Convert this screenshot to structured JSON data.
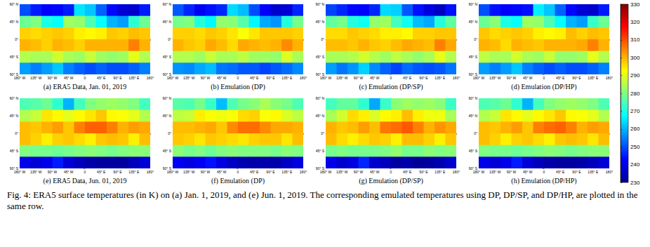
{
  "chart_data": {
    "type": "heatmap",
    "caption": "Fig. 4: ERA5 surface temperatures (in K) on (a) Jan. 1, 2019, and (e) Jun. 1, 2019. The corresponding emulated temperatures using DP, DP/SP, and DP/HP, are plotted in the same row.",
    "xlim": [
      -180,
      180
    ],
    "ylim": [
      -90,
      90
    ],
    "xticks": [
      {
        "value": -180,
        "label": "180° W"
      },
      {
        "value": -135,
        "label": "135° W"
      },
      {
        "value": -90,
        "label": "90° W"
      },
      {
        "value": -45,
        "label": "45° W"
      },
      0,
      {
        "value": 45,
        "label": "45° E"
      },
      {
        "value": 90,
        "label": "90° E"
      },
      {
        "value": 135,
        "label": "135° E"
      },
      {
        "value": 180,
        "label": "180°"
      }
    ],
    "yticks": [
      {
        "value": -90,
        "label": "90° S"
      },
      {
        "value": -45,
        "label": "45° S"
      },
      {
        "value": 0,
        "label": "0°"
      },
      {
        "value": 45,
        "label": "45° N"
      },
      {
        "value": 90,
        "label": "90° N"
      }
    ],
    "grid": false,
    "lon_edges": [
      -180,
      -150,
      -120,
      -90,
      -60,
      -30,
      0,
      30,
      60,
      90,
      120,
      150,
      180
    ],
    "lat_edges": [
      90,
      60,
      30,
      0,
      -30,
      -60,
      -90
    ],
    "colorbar": {
      "range": [
        230,
        330
      ],
      "ticks": [
        230,
        240,
        250,
        260,
        270,
        280,
        290,
        300,
        310,
        320,
        330
      ]
    },
    "panels": [
      {
        "caption": "(a) ERA5 Data, Jan. 01, 2019",
        "cells": [
          [
            250,
            245,
            242,
            243,
            245,
            265,
            262,
            252,
            243,
            238,
            237,
            245
          ],
          [
            278,
            280,
            270,
            268,
            283,
            282,
            275,
            268,
            260,
            258,
            272,
            278
          ],
          [
            297,
            296,
            297,
            298,
            297,
            294,
            293,
            294,
            298,
            297,
            299,
            298
          ],
          [
            300,
            299,
            297,
            300,
            299,
            297,
            300,
            300,
            300,
            300,
            305,
            300
          ],
          [
            285,
            284,
            284,
            288,
            284,
            283,
            287,
            283,
            282,
            283,
            290,
            285
          ],
          [
            258,
            255,
            258,
            262,
            255,
            252,
            250,
            252,
            250,
            250,
            252,
            255
          ]
        ]
      },
      {
        "caption": "(b) Emulation (DP)",
        "cells": [
          [
            251,
            246,
            241,
            244,
            246,
            264,
            261,
            250,
            242,
            237,
            238,
            246
          ],
          [
            279,
            280,
            271,
            267,
            282,
            281,
            276,
            267,
            259,
            257,
            271,
            279
          ],
          [
            297,
            297,
            296,
            298,
            297,
            295,
            292,
            295,
            298,
            298,
            298,
            297
          ],
          [
            300,
            298,
            297,
            301,
            299,
            296,
            301,
            300,
            299,
            300,
            304,
            300
          ],
          [
            285,
            285,
            283,
            287,
            284,
            284,
            286,
            283,
            283,
            282,
            289,
            284
          ],
          [
            257,
            256,
            259,
            261,
            254,
            253,
            251,
            251,
            249,
            251,
            253,
            256
          ]
        ]
      },
      {
        "caption": "(c) Emulation (DP/SP)",
        "cells": [
          [
            249,
            246,
            243,
            242,
            246,
            264,
            263,
            251,
            244,
            239,
            236,
            244
          ],
          [
            277,
            279,
            271,
            269,
            282,
            283,
            274,
            269,
            261,
            259,
            271,
            277
          ],
          [
            296,
            296,
            298,
            297,
            296,
            294,
            294,
            293,
            297,
            297,
            298,
            298
          ],
          [
            299,
            299,
            298,
            300,
            298,
            297,
            299,
            301,
            300,
            299,
            305,
            301
          ],
          [
            284,
            284,
            285,
            288,
            285,
            283,
            286,
            284,
            282,
            284,
            290,
            285
          ],
          [
            258,
            254,
            257,
            263,
            256,
            252,
            249,
            253,
            251,
            250,
            251,
            254
          ]
        ]
      },
      {
        "caption": "(d) Emulation (DP/HP)",
        "cells": [
          [
            250,
            244,
            242,
            243,
            244,
            266,
            262,
            252,
            243,
            238,
            237,
            245
          ],
          [
            278,
            281,
            270,
            268,
            283,
            282,
            275,
            268,
            260,
            258,
            273,
            278
          ],
          [
            298,
            296,
            297,
            298,
            297,
            294,
            293,
            294,
            299,
            297,
            299,
            298
          ],
          [
            300,
            299,
            296,
            300,
            299,
            298,
            300,
            300,
            300,
            301,
            305,
            300
          ],
          [
            286,
            284,
            284,
            288,
            284,
            283,
            287,
            282,
            282,
            283,
            290,
            285
          ],
          [
            258,
            255,
            258,
            262,
            255,
            252,
            250,
            252,
            250,
            250,
            252,
            255
          ]
        ]
      },
      {
        "caption": "(e) ERA5 Data, Jun. 01, 2019",
        "cells": [
          [
            275,
            276,
            278,
            272,
            260,
            274,
            280,
            282,
            283,
            282,
            280,
            274
          ],
          [
            285,
            287,
            295,
            293,
            290,
            293,
            295,
            298,
            293,
            292,
            290,
            285
          ],
          [
            299,
            298,
            300,
            302,
            298,
            305,
            308,
            308,
            305,
            300,
            302,
            301
          ],
          [
            299,
            297,
            294,
            297,
            298,
            296,
            294,
            298,
            299,
            298,
            294,
            299
          ],
          [
            280,
            279,
            279,
            278,
            279,
            280,
            281,
            280,
            279,
            280,
            281,
            281
          ],
          [
            240,
            238,
            240,
            245,
            238,
            235,
            233,
            232,
            232,
            232,
            235,
            238
          ]
        ]
      },
      {
        "caption": "(f) Emulation (DP)",
        "cells": [
          [
            276,
            275,
            279,
            273,
            261,
            275,
            279,
            281,
            284,
            281,
            279,
            275
          ],
          [
            286,
            287,
            294,
            292,
            291,
            292,
            296,
            297,
            292,
            293,
            289,
            286
          ],
          [
            299,
            299,
            300,
            301,
            298,
            304,
            307,
            307,
            304,
            301,
            301,
            300
          ],
          [
            298,
            297,
            295,
            298,
            297,
            296,
            295,
            297,
            298,
            298,
            295,
            299
          ],
          [
            281,
            279,
            280,
            278,
            280,
            281,
            280,
            280,
            280,
            279,
            281,
            280
          ],
          [
            241,
            239,
            241,
            244,
            239,
            236,
            234,
            233,
            233,
            233,
            236,
            239
          ]
        ]
      },
      {
        "caption": "(g) Emulation (DP/SP)",
        "cells": [
          [
            274,
            277,
            277,
            272,
            259,
            273,
            281,
            283,
            282,
            283,
            281,
            273
          ],
          [
            284,
            288,
            296,
            294,
            289,
            293,
            294,
            299,
            294,
            291,
            291,
            284
          ],
          [
            300,
            298,
            299,
            302,
            299,
            306,
            307,
            309,
            305,
            300,
            303,
            301
          ],
          [
            299,
            296,
            294,
            296,
            298,
            297,
            294,
            299,
            299,
            297,
            294,
            298
          ],
          [
            279,
            280,
            279,
            279,
            279,
            280,
            282,
            279,
            279,
            281,
            280,
            281
          ],
          [
            240,
            237,
            239,
            246,
            237,
            235,
            232,
            233,
            231,
            232,
            234,
            237
          ]
        ]
      },
      {
        "caption": "(h) Emulation (DP/HP)",
        "cells": [
          [
            275,
            276,
            278,
            272,
            260,
            274,
            280,
            282,
            283,
            282,
            280,
            275
          ],
          [
            285,
            287,
            295,
            293,
            290,
            293,
            295,
            298,
            293,
            292,
            290,
            285
          ],
          [
            299,
            298,
            300,
            302,
            298,
            305,
            307,
            308,
            305,
            300,
            302,
            301
          ],
          [
            299,
            297,
            294,
            297,
            298,
            296,
            294,
            298,
            299,
            298,
            295,
            299
          ],
          [
            280,
            279,
            279,
            278,
            279,
            280,
            281,
            280,
            279,
            280,
            281,
            281
          ],
          [
            240,
            238,
            240,
            245,
            238,
            235,
            233,
            232,
            232,
            233,
            235,
            238
          ]
        ]
      }
    ]
  }
}
